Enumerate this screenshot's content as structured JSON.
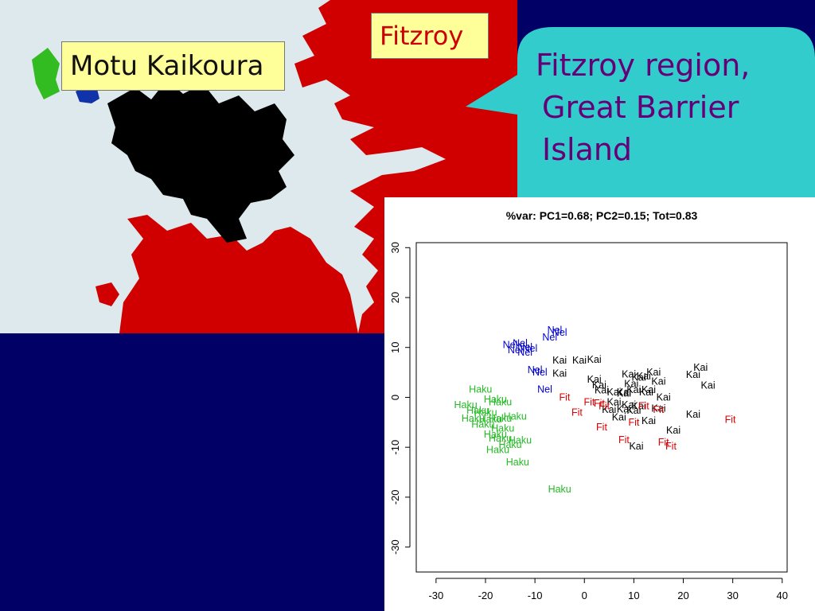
{
  "slide": {
    "labels": {
      "motu": "Motu Kaikoura",
      "fitzroy": "Fitzroy"
    },
    "callout": {
      "line1": "Fitzroy region,",
      "line2": "Great Barrier",
      "line3": "Island"
    },
    "colors": {
      "background": "#000066",
      "sea": "#dde9ec",
      "land_fitzroy": "#d00000",
      "land_motu": "#000000",
      "land_green": "#33bb22",
      "land_blue": "#1133aa",
      "callout": "#33cccc",
      "callout_text": "#660077",
      "label_box": "#ffff99"
    }
  },
  "chart_data": {
    "type": "scatter",
    "title": "%var: PC1=0.68; PC2=0.15; Tot=0.83",
    "xlabel": "",
    "ylabel": "",
    "xlim": [
      -34,
      41
    ],
    "ylim": [
      -35,
      31
    ],
    "xticks": [
      "-30",
      "-20",
      "-10",
      "0",
      "10",
      "20",
      "30",
      "40"
    ],
    "yticks": [
      "30",
      "20",
      "10",
      "0",
      "-10",
      "-20",
      "-30"
    ],
    "series": [
      {
        "name": "Nel",
        "color": "#0000cc",
        "points": [
          [
            -6,
            13.5
          ],
          [
            -5,
            13
          ],
          [
            -7,
            12
          ],
          [
            -15,
            10.5
          ],
          [
            -13,
            10.8
          ],
          [
            -12,
            10
          ],
          [
            -14,
            9.5
          ],
          [
            -11,
            9.8
          ],
          [
            -12,
            9
          ],
          [
            -10,
            5.5
          ],
          [
            -9,
            5
          ],
          [
            -8,
            1.6
          ]
        ]
      },
      {
        "name": "Kai",
        "color": "#000000",
        "points": [
          [
            -5,
            7.4
          ],
          [
            -1,
            7.4
          ],
          [
            2,
            7.6
          ],
          [
            -5,
            4.8
          ],
          [
            2,
            3.6
          ],
          [
            3,
            2.5
          ],
          [
            3.5,
            1.4
          ],
          [
            6,
            1
          ],
          [
            8,
            0.8
          ],
          [
            9,
            4.6
          ],
          [
            11,
            4
          ],
          [
            12,
            4.2
          ],
          [
            14,
            5
          ],
          [
            15,
            3.2
          ],
          [
            9.5,
            2.7
          ],
          [
            13,
            1.5
          ],
          [
            10,
            1.5
          ],
          [
            8,
            1
          ],
          [
            12.5,
            1
          ],
          [
            16,
            0
          ],
          [
            6,
            -1
          ],
          [
            9,
            -1.5
          ],
          [
            11,
            -1.8
          ],
          [
            5,
            -2.5
          ],
          [
            8,
            -2.4
          ],
          [
            10,
            -2.6
          ],
          [
            7,
            -4
          ],
          [
            13,
            -4.7
          ],
          [
            15,
            -2.2
          ],
          [
            22,
            4.5
          ],
          [
            23.5,
            6
          ],
          [
            25,
            2.4
          ],
          [
            22,
            -3.4
          ],
          [
            18,
            -6.6
          ],
          [
            10.5,
            -9.8
          ]
        ]
      },
      {
        "name": "Fit",
        "color": "#dd0000",
        "points": [
          [
            -4,
            0
          ],
          [
            1,
            -1
          ],
          [
            3,
            -1.2
          ],
          [
            4,
            -1.8
          ],
          [
            -1.5,
            -3
          ],
          [
            15,
            -2.5
          ],
          [
            12,
            -1.8
          ],
          [
            3.5,
            -6
          ],
          [
            10,
            -5
          ],
          [
            8,
            -8.5
          ],
          [
            16,
            -9
          ],
          [
            17.5,
            -9.8
          ],
          [
            29.5,
            -4.5
          ]
        ]
      },
      {
        "name": "Haku",
        "color": "#22bb22",
        "points": [
          [
            -21,
            1.6
          ],
          [
            -18,
            -0.4
          ],
          [
            -17,
            -1
          ],
          [
            -24,
            -1.5
          ],
          [
            -21.5,
            -2.6
          ],
          [
            -20,
            -3
          ],
          [
            -22.5,
            -4.2
          ],
          [
            -19,
            -4.4
          ],
          [
            -17,
            -4.2
          ],
          [
            -14,
            -3.8
          ],
          [
            -20.5,
            -5.4
          ],
          [
            -16.5,
            -6.2
          ],
          [
            -18,
            -7.4
          ],
          [
            -17,
            -8.2
          ],
          [
            -13,
            -8.6
          ],
          [
            -15,
            -9.5
          ],
          [
            -17.5,
            -10.5
          ],
          [
            -13.5,
            -13
          ],
          [
            -5,
            -18.4
          ]
        ]
      }
    ]
  }
}
